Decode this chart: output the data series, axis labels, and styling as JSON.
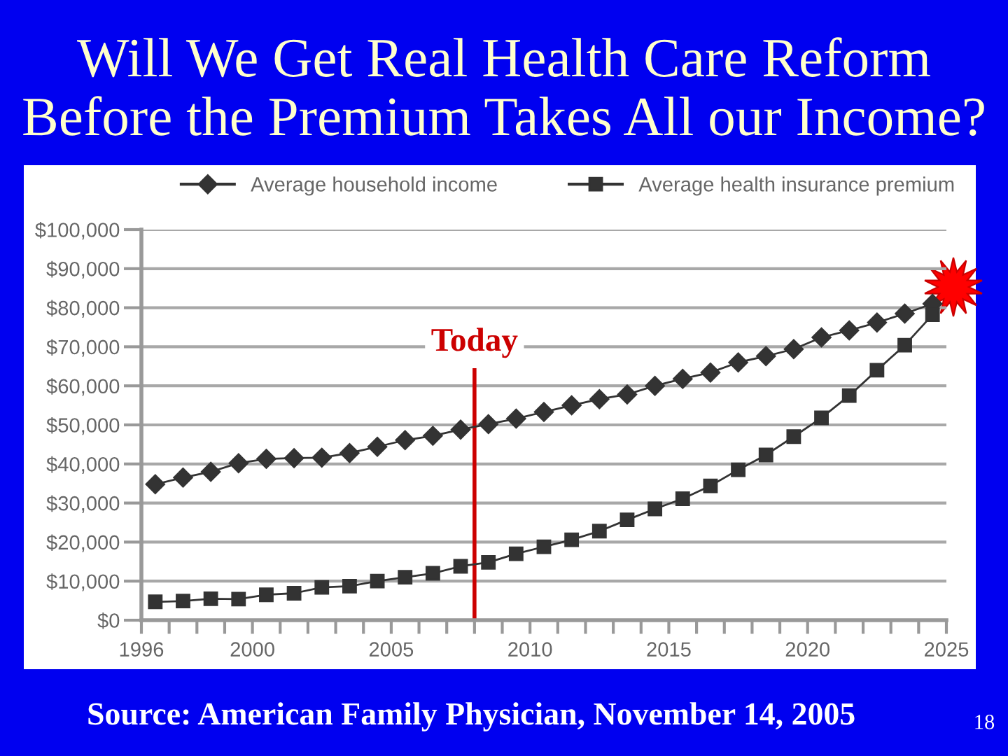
{
  "chart_data": {
    "type": "line",
    "title": "Will We Get Real Health Care Reform\nBefore the Premium Takes All our Income?",
    "x": [
      1996.5,
      1997.5,
      1998.5,
      1999.5,
      2000.5,
      2001.5,
      2002.5,
      2003.5,
      2004.5,
      2005.5,
      2006.5,
      2007.5,
      2008.5,
      2009.5,
      2010.5,
      2011.5,
      2012.5,
      2013.5,
      2014.5,
      2015.5,
      2016.5,
      2017.5,
      2018.5,
      2019.5,
      2020.5,
      2021.5,
      2022.5,
      2023.5,
      2024.5
    ],
    "series": [
      {
        "name": "Average household income",
        "color": "#333333",
        "marker": "diamond",
        "values": [
          34800,
          36500,
          38000,
          40200,
          41300,
          41500,
          41600,
          42800,
          44400,
          46100,
          47200,
          48800,
          50200,
          51600,
          53300,
          55000,
          56600,
          57800,
          60000,
          61800,
          63400,
          66000,
          67600,
          69400,
          72400,
          74200,
          76200,
          78500,
          81000
        ]
      },
      {
        "name": "Average health insurance premium",
        "color": "#333333",
        "marker": "square",
        "values": [
          4700,
          4900,
          5500,
          5400,
          6500,
          6900,
          8400,
          8700,
          10000,
          11000,
          12000,
          13800,
          14800,
          17000,
          18800,
          20600,
          22800,
          25700,
          28500,
          31100,
          34400,
          38500,
          42300,
          47000,
          51800,
          57500,
          64000,
          70400,
          78200
        ]
      }
    ],
    "xlim": [
      1996,
      2025
    ],
    "xticks": [
      1996,
      {
        "value": 1997,
        "label": null
      },
      {
        "value": 1998,
        "label": null
      },
      {
        "value": 1999,
        "label": null
      },
      2000,
      {
        "value": 2001,
        "label": null
      },
      {
        "value": 2002,
        "label": null
      },
      {
        "value": 2003,
        "label": null
      },
      {
        "value": 2004,
        "label": null
      },
      2005,
      {
        "value": 2006,
        "label": null
      },
      {
        "value": 2007,
        "label": null
      },
      {
        "value": 2008,
        "label": null
      },
      {
        "value": 2009,
        "label": null
      },
      2010,
      {
        "value": 2011,
        "label": null
      },
      {
        "value": 2012,
        "label": null
      },
      {
        "value": 2013,
        "label": null
      },
      {
        "value": 2014,
        "label": null
      },
      2015,
      {
        "value": 2016,
        "label": null
      },
      {
        "value": 2017,
        "label": null
      },
      {
        "value": 2018,
        "label": null
      },
      {
        "value": 2019,
        "label": null
      },
      2020,
      {
        "value": 2021,
        "label": null
      },
      {
        "value": 2022,
        "label": null
      },
      {
        "value": 2023,
        "label": null
      },
      {
        "value": 2024,
        "label": null
      },
      2025
    ],
    "ylim": [
      0,
      100000
    ],
    "yticks": [
      {
        "value": 0,
        "label": "$0"
      },
      {
        "value": 10000,
        "label": "$10,000"
      },
      {
        "value": 20000,
        "label": "$20,000"
      },
      {
        "value": 30000,
        "label": "$30,000"
      },
      {
        "value": 40000,
        "label": "$40,000"
      },
      {
        "value": 50000,
        "label": "$50,000"
      },
      {
        "value": 60000,
        "label": "$60,000"
      },
      {
        "value": 70000,
        "label": "$70,000"
      },
      {
        "value": 80000,
        "label": "$80,000"
      },
      {
        "value": 90000,
        "label": "$90,000"
      },
      {
        "value": 100000,
        "label": "$100,000"
      }
    ],
    "ref_lines": [
      {
        "axis": "x",
        "value": 2008,
        "label": "Today",
        "color": "#cc0000",
        "line_style": "solid"
      }
    ],
    "grid": "y",
    "legend": "top",
    "annotations": [
      "Source: American Family Physician, November 14, 2005",
      "18"
    ]
  }
}
